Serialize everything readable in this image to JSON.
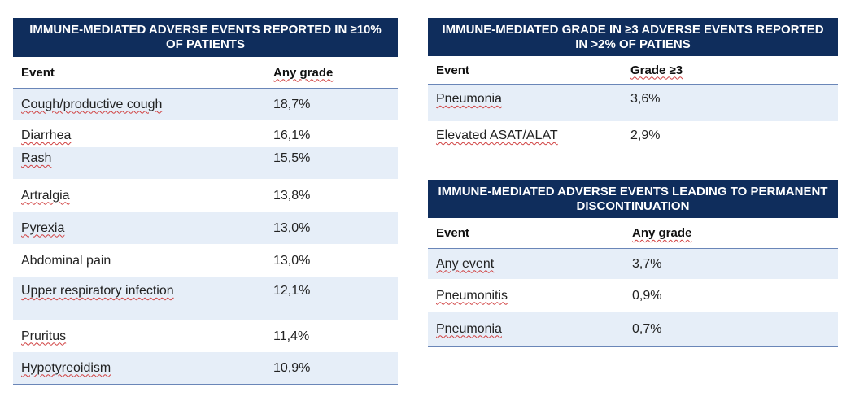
{
  "table1": {
    "title": "IMMUNE-MEDIATED ADVERSE EVENTS REPORTED IN ≥10% OF PATIENTS",
    "col_event": "Event",
    "col_value": "Any grade",
    "rows": [
      {
        "event": "Cough/productive cough",
        "value": "18,7%"
      },
      {
        "event": "Diarrhea",
        "value": "16,1%"
      },
      {
        "event": "Rash",
        "value": "15,5%"
      },
      {
        "event": "Artralgia",
        "value": "13,8%"
      },
      {
        "event": "Pyrexia",
        "value": "13,0%"
      },
      {
        "event": "Abdominal pain",
        "value": "13,0%"
      },
      {
        "event": "Upper respiratory infection",
        "value": "12,1%"
      },
      {
        "event": "Pruritus",
        "value": "11,4%"
      },
      {
        "event": "Hypotyreoidism",
        "value": "10,9%"
      }
    ]
  },
  "table2": {
    "title": "IMMUNE-MEDIATED GRADE IN ≥3 ADVERSE EVENTS REPORTED IN >2% OF PATIENS",
    "col_event": "Event",
    "col_value": "Grade ≥3",
    "rows": [
      {
        "event": "Pneumonia",
        "value": "3,6%"
      },
      {
        "event": "Elevated ASAT/ALAT",
        "value": "2,9%"
      }
    ]
  },
  "table3": {
    "title": "IMMUNE-MEDIATED ADVERSE EVENTS LEADING TO PERMANENT DISCONTINUATION",
    "col_event": "Event",
    "col_value": "Any grade",
    "rows": [
      {
        "event": "Any event",
        "value": "3,7%"
      },
      {
        "event": "Pneumonitis",
        "value": "0,9%"
      },
      {
        "event": "Pneumonia",
        "value": "0,7%"
      }
    ]
  },
  "colors": {
    "header_bg": "#0f2d5c",
    "row_alt": "#e6eef8",
    "rule": "#6a86b8"
  }
}
